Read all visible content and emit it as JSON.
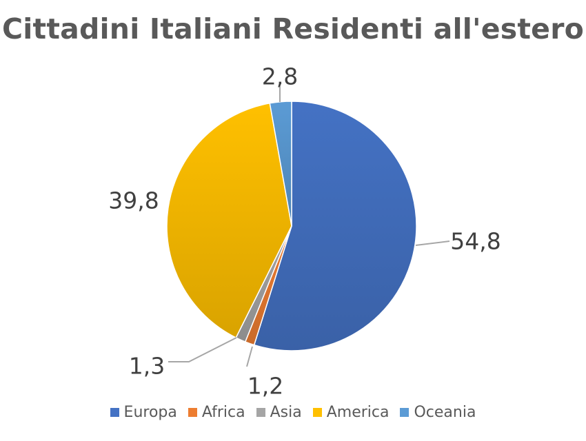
{
  "chart_data": {
    "type": "pie",
    "title": "Cittadini Italiani Residenti all'estero",
    "categories": [
      "Europa",
      "Africa",
      "Asia",
      "America",
      "Oceania"
    ],
    "values": [
      54.8,
      1.2,
      1.3,
      39.8,
      2.8
    ],
    "value_labels": [
      "54,8",
      "1,2",
      "1,3",
      "39,8",
      "2,8"
    ],
    "colors": [
      "#4472C4",
      "#ED7D31",
      "#A5A5A5",
      "#FFC000",
      "#5B9BD5"
    ],
    "start_angle_deg": 0,
    "direction": "clockwise",
    "legend": "bottom"
  }
}
